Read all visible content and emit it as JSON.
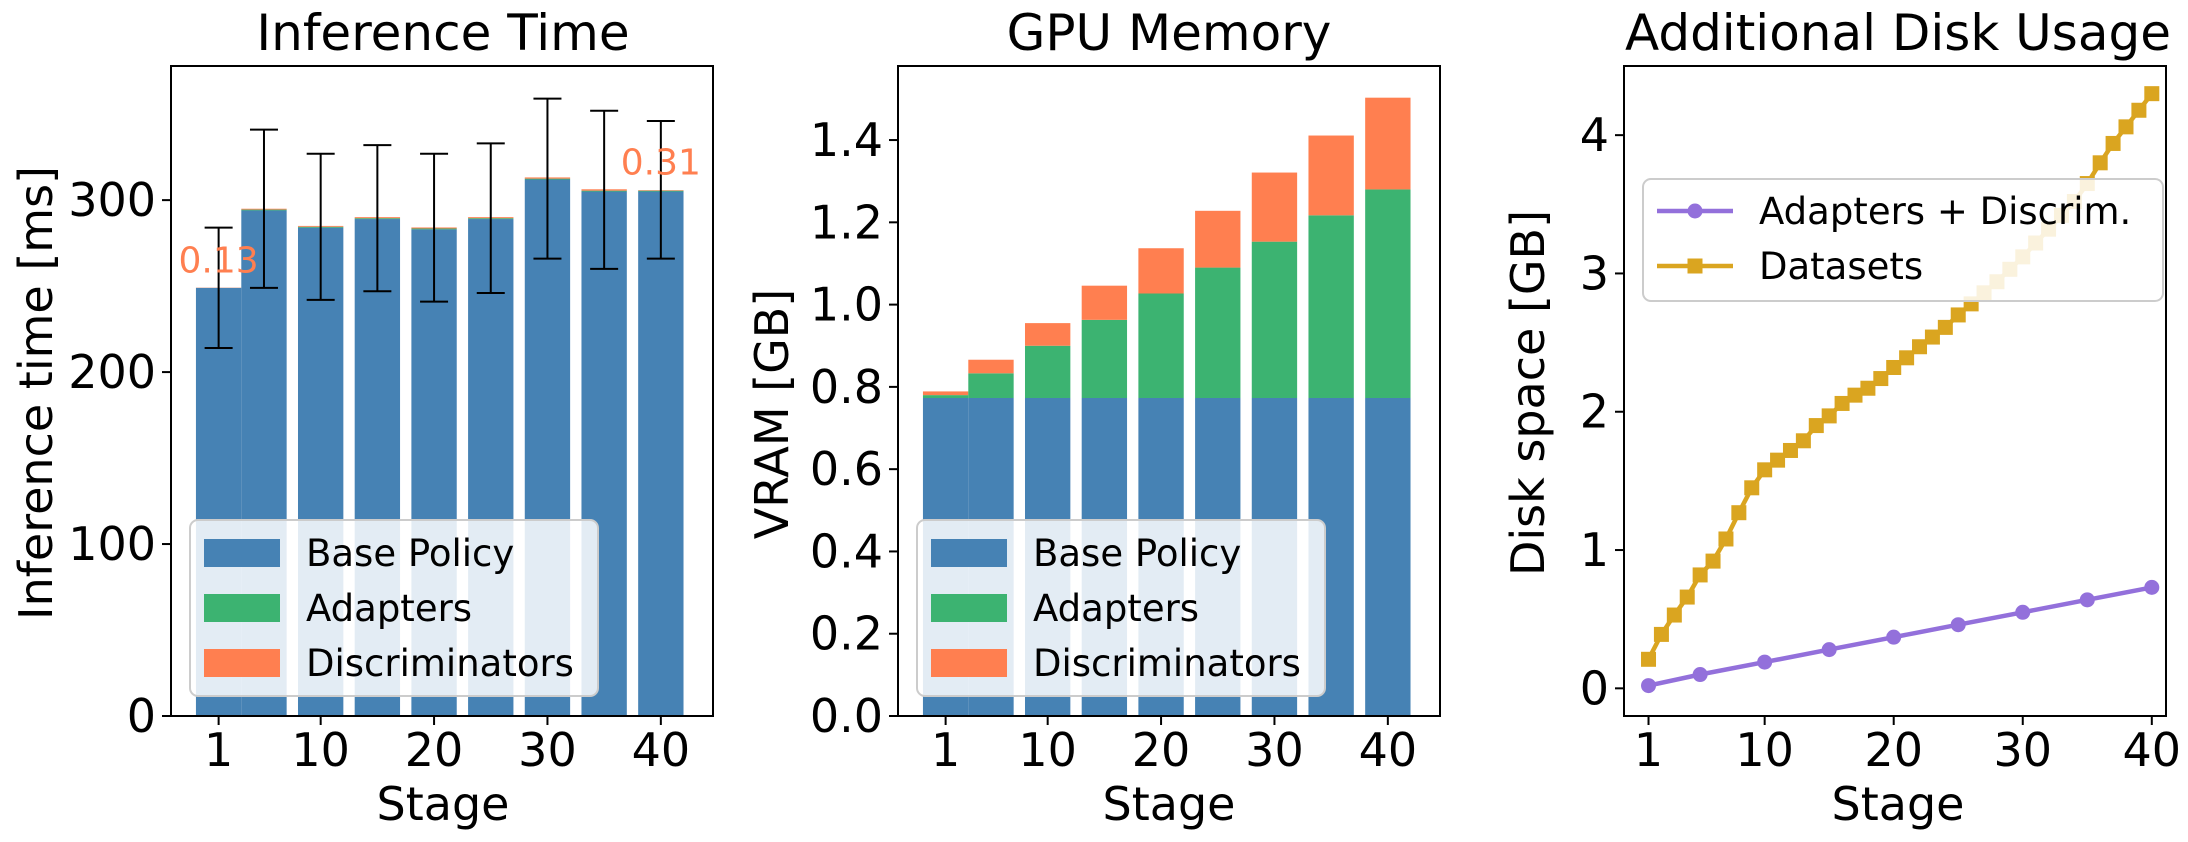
{
  "colors": {
    "base_policy": "#4682b4",
    "adapters": "#3cb371",
    "discriminators": "#ff7f50",
    "adapters_discrim_line": "#9370db",
    "datasets_line": "#daa520",
    "annotation": "#ff7f50"
  },
  "chart_data": [
    {
      "type": "bar",
      "stacked": true,
      "title": "Inference Time",
      "xlabel": "Stage",
      "ylabel": "Inference time [ms]",
      "x": [
        1,
        5,
        10,
        15,
        20,
        25,
        30,
        35,
        40
      ],
      "xticks": [
        1,
        10,
        20,
        30,
        40
      ],
      "xticklabels": [
        "1",
        "10",
        "20",
        "30",
        "40"
      ],
      "xlim": [
        -3.2,
        44.6
      ],
      "ylim": [
        0,
        378
      ],
      "yticks": [
        0,
        100,
        200,
        300
      ],
      "yticklabels": [
        "0",
        "100",
        "200",
        "300"
      ],
      "bar_width": 4,
      "series": [
        {
          "name": "Base Policy",
          "values": [
            249,
            294,
            284,
            289,
            283,
            289,
            312,
            305,
            305
          ]
        },
        {
          "name": "Adapters",
          "values": [
            0,
            0.5,
            0.5,
            0.5,
            0.5,
            0.5,
            0.5,
            0.5,
            0.5
          ]
        },
        {
          "name": "Discriminators",
          "values": [
            0.13,
            0.5,
            0.5,
            0.6,
            0.6,
            0.6,
            0.7,
            0.8,
            0.31
          ]
        }
      ],
      "error_bars": {
        "lower": [
          214,
          249,
          242,
          247,
          241,
          246,
          266,
          260,
          266
        ],
        "upper": [
          284,
          341,
          327,
          332,
          327,
          333,
          359,
          352,
          346
        ]
      },
      "annotations": [
        {
          "text": "0.13",
          "x": 1,
          "y": 258
        },
        {
          "text": "0.31",
          "x": 40,
          "y": 315
        }
      ],
      "legend": {
        "loc": "lower-left",
        "entries": [
          "Base Policy",
          "Adapters",
          "Discriminators"
        ]
      }
    },
    {
      "type": "bar",
      "stacked": true,
      "title": "GPU Memory",
      "xlabel": "Stage",
      "ylabel": "VRAM [GB]",
      "x": [
        1,
        5,
        10,
        15,
        20,
        25,
        30,
        35,
        40
      ],
      "xticks": [
        1,
        10,
        20,
        30,
        40
      ],
      "xticklabels": [
        "1",
        "10",
        "20",
        "30",
        "40"
      ],
      "xlim": [
        -3.2,
        44.6
      ],
      "ylim": [
        0,
        1.58
      ],
      "yticks": [
        0,
        0.2,
        0.4,
        0.6,
        0.8,
        1.0,
        1.2,
        1.4
      ],
      "yticklabels": [
        "0.0",
        "0.2",
        "0.4",
        "0.6",
        "0.8",
        "1.0",
        "1.2",
        "1.4"
      ],
      "bar_width": 4,
      "series": [
        {
          "name": "Base Policy",
          "values": [
            0.773,
            0.773,
            0.773,
            0.773,
            0.773,
            0.773,
            0.773,
            0.773,
            0.773
          ]
        },
        {
          "name": "Adapters",
          "values": [
            0.007,
            0.06,
            0.127,
            0.19,
            0.254,
            0.317,
            0.38,
            0.444,
            0.507
          ]
        },
        {
          "name": "Discriminators",
          "values": [
            0.009,
            0.033,
            0.055,
            0.083,
            0.11,
            0.138,
            0.168,
            0.194,
            0.223
          ]
        }
      ],
      "legend": {
        "loc": "lower-left",
        "entries": [
          "Base Policy",
          "Adapters",
          "Discriminators"
        ]
      }
    },
    {
      "type": "line",
      "title": "Additional Disk Usage",
      "xlabel": "Stage",
      "ylabel": "Disk space [GB]",
      "xlim": [
        -0.9,
        41.1
      ],
      "ylim": [
        -0.2,
        4.5
      ],
      "xticks": [
        1,
        10,
        20,
        30,
        40
      ],
      "xticklabels": [
        "1",
        "10",
        "20",
        "30",
        "40"
      ],
      "yticks": [
        0,
        1,
        2,
        3,
        4
      ],
      "yticklabels": [
        "0",
        "1",
        "2",
        "3",
        "4"
      ],
      "series": [
        {
          "name": "Adapters + Discrim.",
          "marker": "circle",
          "x": [
            1,
            5,
            10,
            15,
            20,
            25,
            30,
            35,
            40
          ],
          "values": [
            0.02,
            0.1,
            0.19,
            0.28,
            0.37,
            0.46,
            0.55,
            0.64,
            0.73
          ]
        },
        {
          "name": "Datasets",
          "marker": "square",
          "x": [
            1,
            2,
            3,
            4,
            5,
            6,
            7,
            8,
            9,
            10,
            11,
            12,
            13,
            14,
            15,
            16,
            17,
            18,
            19,
            20,
            21,
            22,
            23,
            24,
            25,
            26,
            27,
            28,
            29,
            30,
            31,
            32,
            33,
            34,
            35,
            36,
            37,
            38,
            39,
            40
          ],
          "values": [
            0.21,
            0.39,
            0.53,
            0.66,
            0.82,
            0.92,
            1.08,
            1.27,
            1.45,
            1.58,
            1.65,
            1.72,
            1.79,
            1.9,
            1.97,
            2.06,
            2.12,
            2.17,
            2.24,
            2.32,
            2.39,
            2.47,
            2.54,
            2.61,
            2.7,
            2.78,
            2.86,
            2.94,
            3.03,
            3.12,
            3.22,
            3.32,
            3.42,
            3.52,
            3.65,
            3.8,
            3.94,
            4.06,
            4.18,
            4.3
          ]
        }
      ],
      "legend": {
        "loc": "upper-left",
        "entries": [
          "Adapters + Discrim.",
          "Datasets"
        ]
      }
    }
  ]
}
